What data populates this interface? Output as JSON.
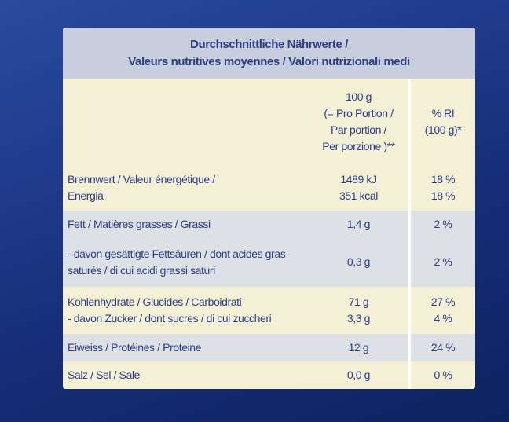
{
  "table": {
    "title": [
      "Durchschnittliche Nährwerte /",
      "Valeurs nutritives moyennes / Valori nutrizionali medi"
    ],
    "columns": [
      [
        "100 g",
        "(= Pro Portion /",
        "Par portion /",
        "Per porzione )**"
      ],
      [
        "% RI",
        "(100 g)*"
      ]
    ],
    "rows": [
      {
        "label": [
          "Brennwert / Valeur énergétique /",
          "Energia"
        ],
        "value": [
          "1489 kJ",
          "351 kcal"
        ],
        "ri": [
          "18 %",
          "18 %"
        ]
      },
      {
        "label": [
          "Fett / Matières grasses / Grassi"
        ],
        "value": [
          "1,4 g"
        ],
        "ri": [
          "2 %"
        ]
      },
      {
        "label": [
          "- davon gesättigte Fettsäuren / dont acides gras",
          "saturés / di cui acidi grassi saturi"
        ],
        "value": [
          "0,3 g"
        ],
        "ri": [
          "2 %"
        ]
      },
      {
        "label": [
          "Kohlenhydrate / Glucides / Carboidrati",
          "- davon Zucker / dont sucres / di cui zuccheri"
        ],
        "value": [
          "71 g",
          "3,3 g"
        ],
        "ri": [
          "27 %",
          "4 %"
        ]
      },
      {
        "label": [
          "Eiweiss / Protéines / Proteine"
        ],
        "value": [
          "12 g"
        ],
        "ri": [
          "24 %"
        ]
      },
      {
        "label": [
          "Salz / Sel / Sale"
        ],
        "value": [
          "0,0 g"
        ],
        "ri": [
          "0 %"
        ]
      }
    ]
  }
}
